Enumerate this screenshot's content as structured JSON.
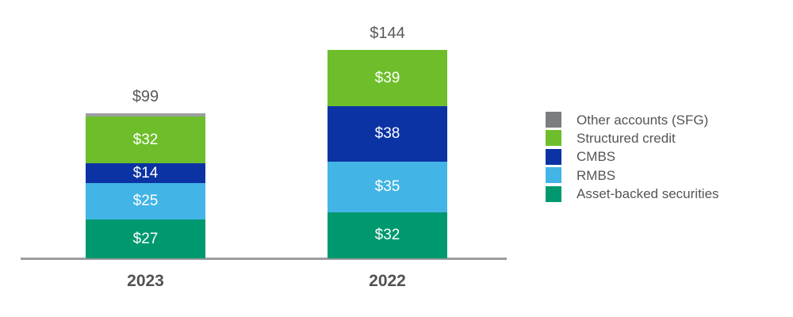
{
  "chart_data": {
    "type": "bar",
    "subtype": "stacked-vertical",
    "value_prefix": "$",
    "categories": [
      "2023",
      "2022"
    ],
    "series": [
      {
        "name": "Other accounts (SFG)",
        "color": "#9C9EA1",
        "legend_color": "#7B7D80",
        "values": [
          1,
          0
        ]
      },
      {
        "name": "Structured credit",
        "color": "#6EBE2B",
        "values": [
          32,
          39
        ]
      },
      {
        "name": "CMBS",
        "color": "#0C33A4",
        "values": [
          14,
          38
        ]
      },
      {
        "name": "RMBS",
        "color": "#42B4E5",
        "values": [
          25,
          35
        ]
      },
      {
        "name": "Asset-backed securities",
        "color": "#00996F",
        "values": [
          27,
          32
        ]
      }
    ],
    "totals": [
      99,
      144
    ],
    "totals_display": [
      "$99",
      "$144"
    ],
    "segment_labels": [
      [
        "",
        "$32",
        "$14",
        "$25",
        "$27"
      ],
      [
        "",
        "$39",
        "$38",
        "$35",
        "$32"
      ]
    ],
    "stack_order": "first-series-on-top",
    "legend_position": "right",
    "x_axis": {
      "baseline_visible": true,
      "gridlines": false,
      "tick_labels": [
        "2023",
        "2022"
      ]
    }
  },
  "colors": {
    "background": "#FFFFFF",
    "axis_line": "#9B9DA0",
    "total_label_text": "#58595B",
    "year_label_text": "#515254",
    "legend_text": "#545557",
    "segment_label_text": "#FFFFFF"
  }
}
